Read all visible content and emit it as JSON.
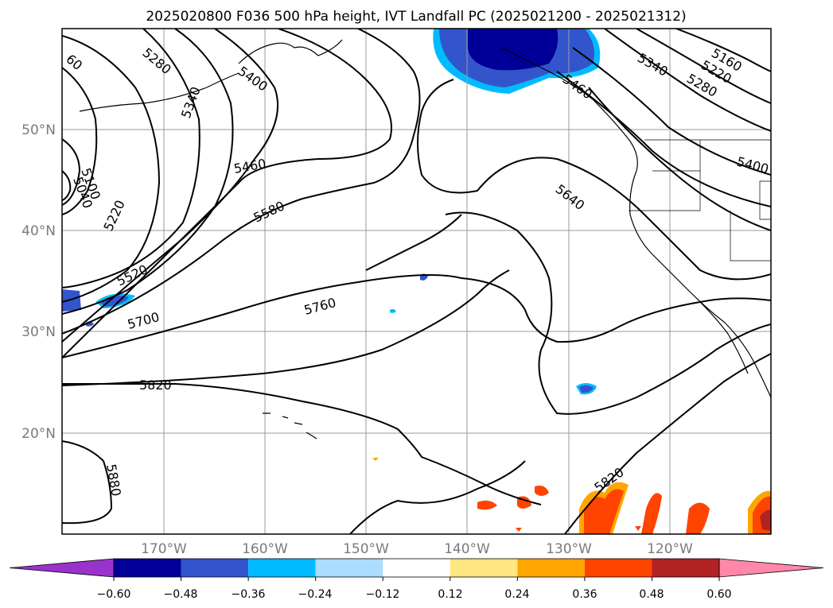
{
  "title": "2025020800 F036 500 hPa height, IVT Landfall PC (2025021200 - 2025021312)",
  "lat_labels": [
    "50°N",
    "40°N",
    "30°N",
    "20°N"
  ],
  "lon_labels": [
    "170°W",
    "160°W",
    "150°W",
    "140°W",
    "130°W",
    "120°W"
  ],
  "contour_labels": [
    "5280",
    "60",
    "5340",
    "5400",
    "5460",
    "5340",
    "5160",
    "5220",
    "5280",
    "5400",
    "5100",
    "5040",
    "5220",
    "5460",
    "5580",
    "5640",
    "5520",
    "5700",
    "5760",
    "5820",
    "5880",
    "5820"
  ],
  "colorbar": {
    "tick_labels": [
      "−0.60",
      "−0.48",
      "−0.36",
      "−0.24",
      "−0.12",
      "0.12",
      "0.24",
      "0.36",
      "0.48",
      "0.60"
    ],
    "colors": [
      "#9933cc",
      "#000099",
      "#3355cc",
      "#00bbff",
      "#aaddff",
      "#ffffff",
      "#ffe680",
      "#ffa500",
      "#ff4400",
      "#b22222",
      "#ff88aa"
    ]
  },
  "colors": {
    "neg_strong": "#000099",
    "neg_mid": "#3355cc",
    "neg_light": "#00bbff",
    "pos_light": "#ffe680",
    "pos_mid": "#ffa500",
    "pos_strong": "#ff4400",
    "pos_dark": "#b22222"
  }
}
